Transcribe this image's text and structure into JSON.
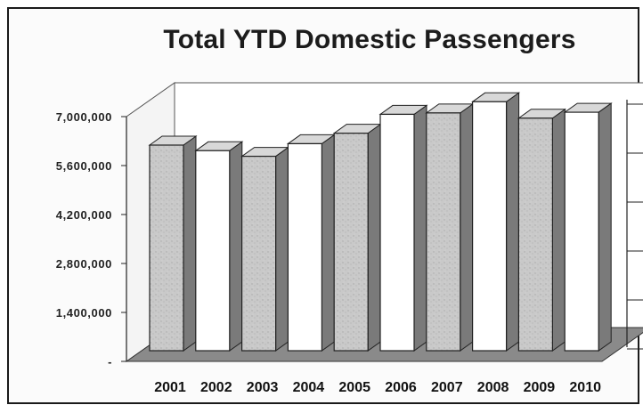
{
  "chart_data": {
    "type": "bar",
    "title": "Total YTD Domestic Passengers",
    "categories": [
      "2001",
      "2002",
      "2003",
      "2004",
      "2005",
      "2006",
      "2007",
      "2008",
      "2009",
      "2010"
    ],
    "series": [
      {
        "values": [
          5880000,
          5720000,
          5560000,
          5920000,
          6220000,
          6760000,
          6800000,
          7120000,
          6650000,
          6820000
        ]
      }
    ],
    "yticks": [
      "-",
      "1,400,000",
      "2,800,000",
      "4,200,000",
      "5,600,000",
      "7,000,000"
    ],
    "ylim": [
      0,
      7000000
    ],
    "grid": false,
    "bar_fills": [
      "#c6c6c6",
      "#ffffff",
      "#c6c6c6",
      "#ffffff",
      "#c6c6c6",
      "#ffffff",
      "#c6c6c6",
      "#ffffff",
      "#c6c6c6",
      "#ffffff"
    ],
    "three_d": true
  }
}
